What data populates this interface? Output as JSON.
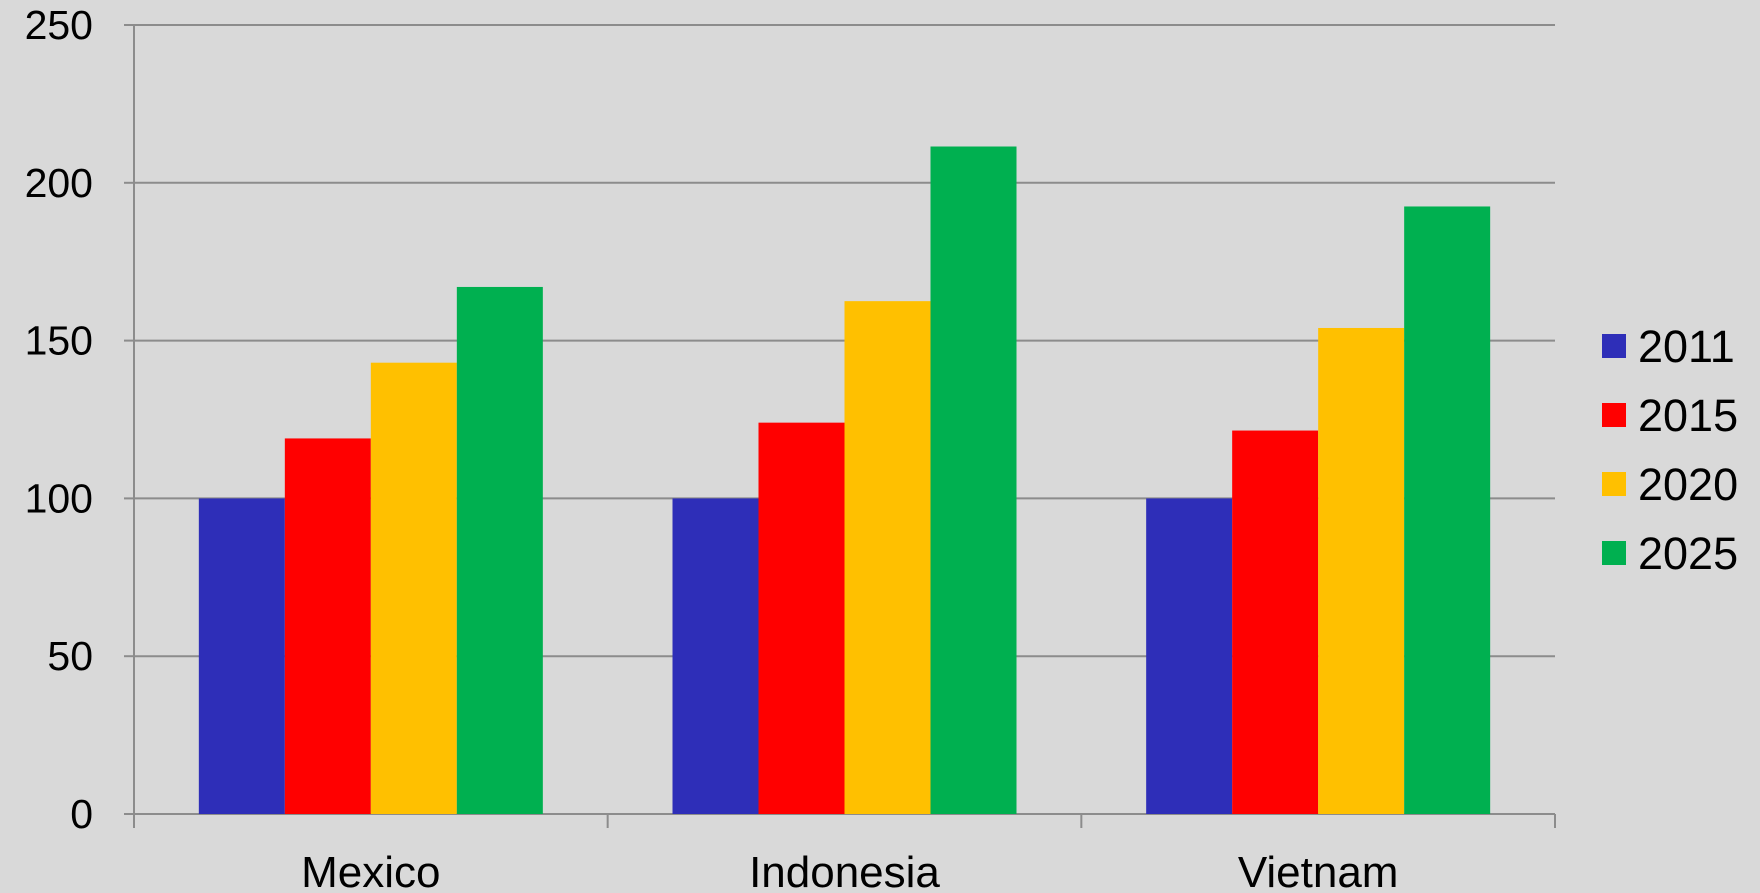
{
  "chart_data": {
    "type": "bar",
    "title": "",
    "xlabel": "",
    "ylabel": "",
    "categories": [
      "Mexico",
      "Indonesia",
      "Vietnam"
    ],
    "series": [
      {
        "name": "2011",
        "color": "#2e2eb8",
        "values": [
          100,
          100,
          100
        ]
      },
      {
        "name": "2015",
        "color": "#ff0000",
        "values": [
          119,
          124,
          121.5
        ]
      },
      {
        "name": "2020",
        "color": "#ffc000",
        "values": [
          143,
          162.5,
          154
        ]
      },
      {
        "name": "2025",
        "color": "#00b050",
        "values": [
          167,
          211.5,
          192.5
        ]
      }
    ],
    "ylim": [
      0,
      250
    ],
    "yticks": [
      "0",
      "50",
      "100",
      "150",
      "200",
      "250"
    ],
    "grid": true,
    "legend_position": "right"
  }
}
